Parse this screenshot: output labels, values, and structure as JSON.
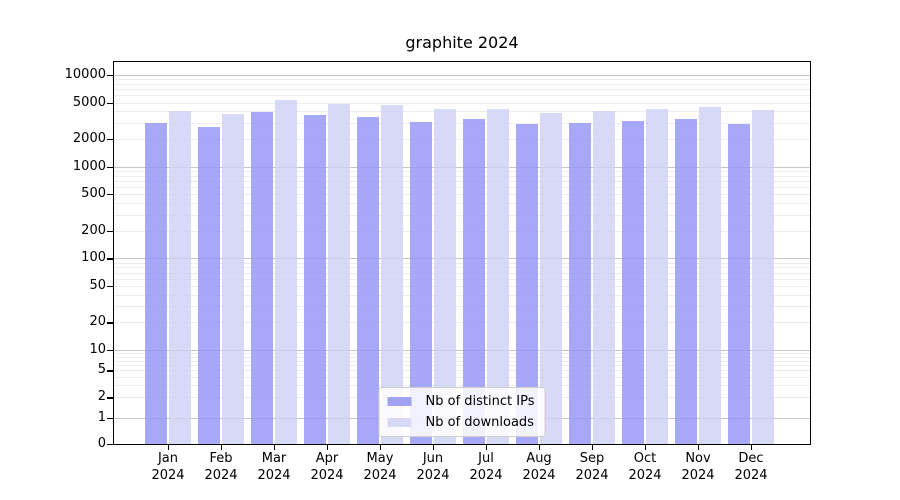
{
  "title": "graphite 2024",
  "legend": {
    "position": "lower center",
    "entries": [
      {
        "label": "Nb of distinct IPs",
        "swatch_color": "#a2a2f2"
      },
      {
        "label": "Nb of downloads",
        "swatch_color": "#d8d8f7"
      }
    ]
  },
  "chart_data": {
    "type": "bar",
    "title": "graphite 2024",
    "categories": [
      "Jan 2024",
      "Feb 2024",
      "Mar 2024",
      "Apr 2024",
      "May 2024",
      "Jun 2024",
      "Jul 2024",
      "Aug 2024",
      "Sep 2024",
      "Oct 2024",
      "Nov 2024",
      "Dec 2024"
    ],
    "series": [
      {
        "name": "Nb of distinct IPs",
        "color": "#a2a2f2",
        "fill": "rgba(146,146,246,0.8)",
        "values": [
          2980,
          2730,
          3960,
          3700,
          3490,
          3050,
          3290,
          2900,
          2980,
          3130,
          3290,
          2900
        ]
      },
      {
        "name": "Nb of downloads",
        "color": "#d8d8f7",
        "fill": "rgba(206,206,245,0.8)",
        "values": [
          4050,
          3760,
          5340,
          4830,
          4680,
          4290,
          4260,
          3820,
          4030,
          4200,
          4440,
          4100
        ]
      }
    ],
    "xlabel": "",
    "ylabel": "",
    "yscale": "symlog",
    "ylim": [
      0,
      13000
    ],
    "y_ticks": [
      0,
      1,
      2,
      5,
      10,
      20,
      50,
      100,
      200,
      500,
      1000,
      2000,
      5000,
      10000
    ],
    "grid": true,
    "grid_major_color": "#c6c6c6",
    "grid_minor_color": "#ededed",
    "legend_position": "lower center"
  }
}
